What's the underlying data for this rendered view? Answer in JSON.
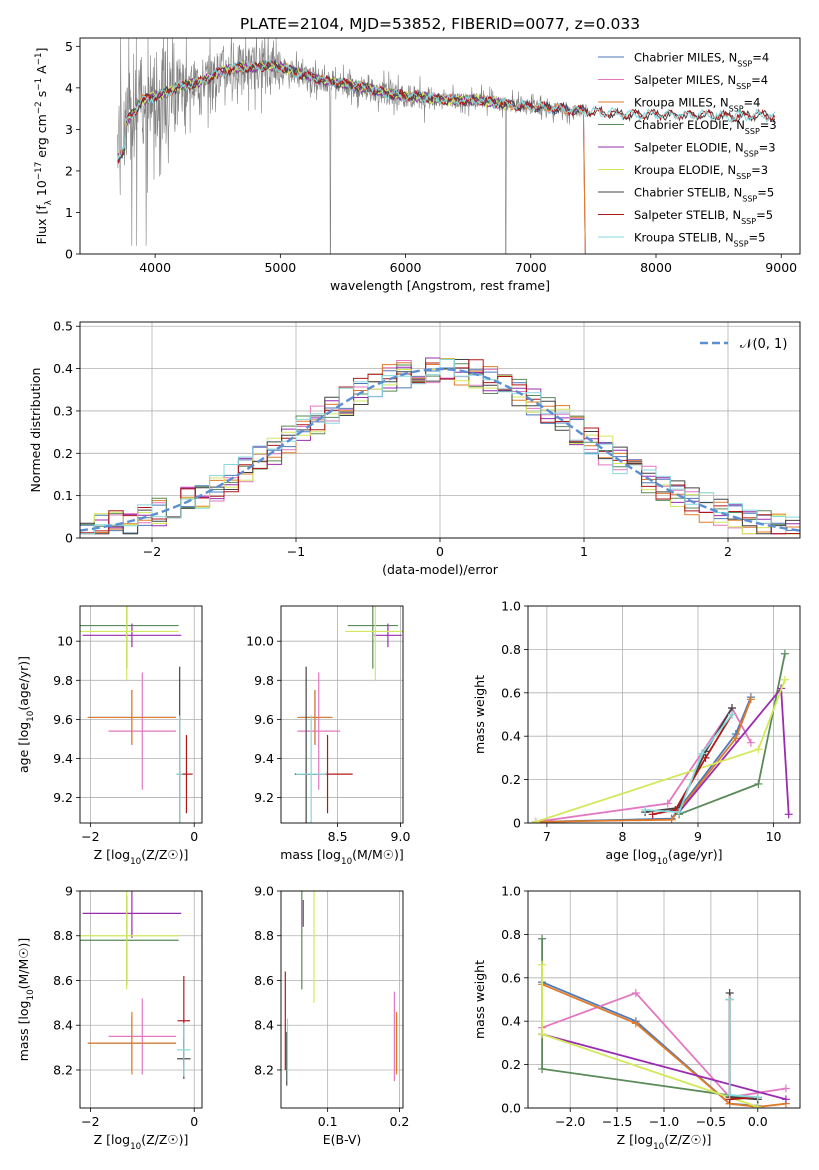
{
  "figure_title": "PLATE=2104, MJD=53852, FIBERID=0077, z=0.033",
  "colors": {
    "Chabrier MILES": "#4e79b8",
    "Salpeter MILES": "#e377c2",
    "Kroupa MILES": "#e07b28",
    "Chabrier ELODIE": "#5a8a5a",
    "Salpeter ELODIE": "#9a2cb0",
    "Kroupa ELODIE": "#d4e85c",
    "Chabrier STELIB": "#444444",
    "Salpeter STELIB": "#b01818",
    "Kroupa STELIB": "#86d8dc",
    "data": "#808080",
    "gaussian": "#5b8fd4",
    "grid": "#b0b0b0"
  },
  "chart_data": [
    {
      "id": "spectrum",
      "type": "line",
      "title": "PLATE=2104, MJD=53852, FIBERID=0077, z=0.033",
      "xlabel": "wavelength [Angstrom, rest frame]",
      "ylabel": "Flux [f_λ 10^-17 erg cm^-2 s^-1 A^-1]",
      "xlim": [
        3400,
        9150
      ],
      "ylim": [
        0,
        5.2
      ],
      "xticks": [
        4000,
        5000,
        6000,
        7000,
        8000,
        9000
      ],
      "yticks": [
        0,
        1,
        2,
        3,
        4,
        5
      ],
      "grid": false,
      "legend_position": "top-right",
      "legend": [
        {
          "name": "Chabrier MILES",
          "nssp": "4"
        },
        {
          "name": "Salpeter MILES",
          "nssp": "4"
        },
        {
          "name": "Kroupa MILES",
          "nssp": "4"
        },
        {
          "name": "Chabrier ELODIE",
          "nssp": "3"
        },
        {
          "name": "Salpeter ELODIE",
          "nssp": "3"
        },
        {
          "name": "Kroupa ELODIE",
          "nssp": "3"
        },
        {
          "name": "Chabrier STELIB",
          "nssp": "5"
        },
        {
          "name": "Salpeter STELIB",
          "nssp": "5"
        },
        {
          "name": "Kroupa STELIB",
          "nssp": "5"
        }
      ],
      "continuum_x": [
        3700,
        3800,
        3900,
        4000,
        4100,
        4200,
        4300,
        4400,
        4500,
        4600,
        4700,
        4800,
        4900,
        5000,
        5200,
        5400,
        5600,
        5800,
        6000,
        6200,
        6400,
        6600,
        6800,
        7000,
        7200,
        7400,
        7600,
        7800,
        8000,
        8200,
        8400,
        8600,
        8800,
        9000
      ],
      "continuum_y": [
        2.9,
        3.3,
        3.7,
        3.8,
        3.9,
        4.05,
        4.1,
        4.2,
        4.35,
        4.45,
        4.5,
        4.5,
        4.55,
        4.5,
        4.3,
        4.15,
        4.05,
        3.9,
        3.8,
        3.75,
        3.7,
        3.7,
        3.6,
        3.55,
        3.5,
        3.45,
        3.4,
        3.35,
        3.35,
        3.35,
        3.35,
        3.3,
        3.35,
        3.3
      ],
      "miles_model_xmax": 7420,
      "elodie_model_xmax": 6800,
      "stelib_model_xmax": 8950,
      "data_xmax": 7450
    },
    {
      "id": "residuals",
      "type": "histogram",
      "xlabel": "(data-model)/error",
      "ylabel": "Normed distribution",
      "xlim": [
        -2.5,
        2.5
      ],
      "ylim": [
        0,
        0.51
      ],
      "xticks": [
        -2,
        -1,
        0,
        1,
        2
      ],
      "yticks": [
        0.0,
        0.1,
        0.2,
        0.3,
        0.4,
        0.5
      ],
      "grid": true,
      "legend_position": "top-right",
      "gaussian_label": "𝒩(0, 1)",
      "bins": 50
    },
    {
      "id": "age_vs_Z",
      "type": "errorbar",
      "xlabel": "Z [log10(Z/Z☉)]",
      "ylabel": "age [log10(age/yr)]",
      "xlim": [
        -2.2,
        0.15
      ],
      "ylim": [
        9.07,
        10.18
      ],
      "xticks": [
        -2,
        0
      ],
      "yticks": [
        9.2,
        9.4,
        9.6,
        9.8,
        10.0
      ],
      "grid": true,
      "points": [
        {
          "series": "Chabrier MILES",
          "x": -1.2,
          "xerr": 0.85,
          "y": 9.61,
          "yerr": 0.14
        },
        {
          "series": "Salpeter MILES",
          "x": -1.0,
          "xerr": 0.65,
          "y": 9.54,
          "yerr": 0.3
        },
        {
          "series": "Kroupa MILES",
          "x": -1.2,
          "xerr": 0.85,
          "y": 9.61,
          "yerr": 0.14
        },
        {
          "series": "Chabrier ELODIE",
          "x": -1.3,
          "xerr": 1.0,
          "y": 10.08,
          "yerr": 0.22
        },
        {
          "series": "Salpeter ELODIE",
          "x": -1.2,
          "xerr": 0.95,
          "y": 10.03,
          "yerr": 0.06
        },
        {
          "series": "Kroupa ELODIE",
          "x": -1.3,
          "xerr": 1.0,
          "y": 10.05,
          "yerr": 0.25
        },
        {
          "series": "Chabrier STELIB",
          "x": -0.28,
          "xerr": 0.06,
          "y": 9.32,
          "yerr": 0.55
        },
        {
          "series": "Salpeter STELIB",
          "x": -0.15,
          "xerr": 0.12,
          "y": 9.32,
          "yerr": 0.2
        },
        {
          "series": "Kroupa STELIB",
          "x": -0.28,
          "xerr": 0.06,
          "y": 9.32,
          "yerr": 0.3
        }
      ]
    },
    {
      "id": "age_vs_mass",
      "type": "errorbar",
      "xlabel": "mass [log10(M/M☉)]",
      "ylabel": "",
      "xlim": [
        8.05,
        9.02
      ],
      "ylim": [
        9.07,
        10.18
      ],
      "xticks": [
        8.5,
        9.0
      ],
      "yticks": [
        9.2,
        9.4,
        9.6,
        9.8,
        10.0
      ],
      "grid": true,
      "points": [
        {
          "series": "Chabrier MILES",
          "x": 8.32,
          "xerr": 0.12,
          "y": 9.61,
          "yerr": 0.14
        },
        {
          "series": "Salpeter MILES",
          "x": 8.35,
          "xerr": 0.17,
          "y": 9.54,
          "yerr": 0.3
        },
        {
          "series": "Kroupa MILES",
          "x": 8.32,
          "xerr": 0.14,
          "y": 9.61,
          "yerr": 0.14
        },
        {
          "series": "Chabrier ELODIE",
          "x": 8.78,
          "xerr": 0.2,
          "y": 10.08,
          "yerr": 0.22
        },
        {
          "series": "Salpeter ELODIE",
          "x": 8.9,
          "xerr": 0.11,
          "y": 10.03,
          "yerr": 0.06
        },
        {
          "series": "Kroupa ELODIE",
          "x": 8.8,
          "xerr": 0.24,
          "y": 10.05,
          "yerr": 0.25
        },
        {
          "series": "Chabrier STELIB",
          "x": 8.25,
          "xerr": 0.09,
          "y": 9.32,
          "yerr": 0.55
        },
        {
          "series": "Salpeter STELIB",
          "x": 8.42,
          "xerr": 0.2,
          "y": 9.32,
          "yerr": 0.2
        },
        {
          "series": "Kroupa STELIB",
          "x": 8.29,
          "xerr": 0.12,
          "y": 9.32,
          "yerr": 0.3
        }
      ]
    },
    {
      "id": "weight_vs_age",
      "type": "line",
      "xlabel": "age [log10(age/yr)]",
      "ylabel": "mass weight",
      "xlim": [
        6.75,
        10.35
      ],
      "ylim": [
        0,
        1.0
      ],
      "xticks": [
        7,
        8,
        9,
        10
      ],
      "yticks": [
        0.0,
        0.2,
        0.4,
        0.6,
        0.8,
        1.0
      ],
      "grid": true,
      "series": [
        {
          "name": "Chabrier MILES",
          "x": [
            6.85,
            8.65,
            9.5,
            9.7
          ],
          "y": [
            0.005,
            0.02,
            0.41,
            0.58
          ]
        },
        {
          "name": "Salpeter MILES",
          "x": [
            6.85,
            8.6,
            9.45,
            9.7
          ],
          "y": [
            0.005,
            0.09,
            0.53,
            0.37
          ]
        },
        {
          "name": "Kroupa MILES",
          "x": [
            6.85,
            8.65,
            9.5,
            9.7
          ],
          "y": [
            0.005,
            0.015,
            0.39,
            0.57
          ]
        },
        {
          "name": "Chabrier ELODIE",
          "x": [
            8.75,
            9.8,
            10.15
          ],
          "y": [
            0.04,
            0.18,
            0.78
          ]
        },
        {
          "name": "Salpeter ELODIE",
          "x": [
            8.75,
            10.1,
            10.2
          ],
          "y": [
            0.05,
            0.62,
            0.04
          ]
        },
        {
          "name": "Kroupa ELODIE",
          "x": [
            6.85,
            9.8,
            10.15
          ],
          "y": [
            0.005,
            0.34,
            0.66
          ]
        },
        {
          "name": "Chabrier STELIB",
          "x": [
            8.3,
            8.75,
            9.1,
            9.45
          ],
          "y": [
            0.05,
            0.07,
            0.33,
            0.53
          ]
        },
        {
          "name": "Salpeter STELIB",
          "x": [
            8.4,
            8.7,
            9.1,
            9.45
          ],
          "y": [
            0.04,
            0.06,
            0.3,
            0.5
          ]
        },
        {
          "name": "Kroupa STELIB",
          "x": [
            8.3,
            8.75,
            9.05,
            9.45
          ],
          "y": [
            0.06,
            0.05,
            0.32,
            0.5
          ]
        }
      ]
    },
    {
      "id": "mass_vs_Z",
      "type": "errorbar",
      "xlabel": "Z [log10(Z/Z☉)]",
      "ylabel": "mass [log10(M/M☉)]",
      "xlim": [
        -2.2,
        0.15
      ],
      "ylim": [
        8.03,
        9.0
      ],
      "xticks": [
        -2,
        0
      ],
      "yticks": [
        8.2,
        8.4,
        8.6,
        8.8,
        9.0
      ],
      "grid": true,
      "points": [
        {
          "series": "Chabrier MILES",
          "x": -1.2,
          "xerr": 0.85,
          "y": 8.32,
          "yerr": 0.12
        },
        {
          "series": "Salpeter MILES",
          "x": -1.0,
          "xerr": 0.65,
          "y": 8.35,
          "yerr": 0.17
        },
        {
          "series": "Kroupa MILES",
          "x": -1.2,
          "xerr": 0.85,
          "y": 8.32,
          "yerr": 0.14
        },
        {
          "series": "Chabrier ELODIE",
          "x": -1.3,
          "xerr": 1.0,
          "y": 8.78,
          "yerr": 0.2
        },
        {
          "series": "Salpeter ELODIE",
          "x": -1.2,
          "xerr": 0.95,
          "y": 8.9,
          "yerr": 0.11
        },
        {
          "series": "Kroupa ELODIE",
          "x": -1.3,
          "xerr": 1.0,
          "y": 8.8,
          "yerr": 0.24
        },
        {
          "series": "Chabrier STELIB",
          "x": -0.2,
          "xerr": 0.13,
          "y": 8.25,
          "yerr": 0.09
        },
        {
          "series": "Salpeter STELIB",
          "x": -0.2,
          "xerr": 0.12,
          "y": 8.42,
          "yerr": 0.2
        },
        {
          "series": "Kroupa STELIB",
          "x": -0.2,
          "xerr": 0.13,
          "y": 8.29,
          "yerr": 0.12
        }
      ]
    },
    {
      "id": "mass_vs_ebv",
      "type": "errorbar",
      "xlabel": "E(B-V)",
      "ylabel": "",
      "xlim": [
        0.035,
        0.205
      ],
      "ylim": [
        8.03,
        9.0
      ],
      "xticks": [
        0.1,
        0.2
      ],
      "yticks": [
        8.2,
        8.4,
        8.6,
        8.8,
        9.0
      ],
      "grid": true,
      "points": [
        {
          "series": "Chabrier MILES",
          "x": 0.196,
          "xerr": 0.0,
          "y": 8.32,
          "yerr": 0.12
        },
        {
          "series": "Salpeter MILES",
          "x": 0.193,
          "xerr": 0.0,
          "y": 8.35,
          "yerr": 0.2
        },
        {
          "series": "Kroupa MILES",
          "x": 0.196,
          "xerr": 0.0,
          "y": 8.32,
          "yerr": 0.14
        },
        {
          "series": "Chabrier ELODIE",
          "x": 0.064,
          "xerr": 0.0,
          "y": 8.78,
          "yerr": 0.22
        },
        {
          "series": "Salpeter ELODIE",
          "x": 0.066,
          "xerr": 0.0,
          "y": 8.9,
          "yerr": 0.06
        },
        {
          "series": "Kroupa ELODIE",
          "x": 0.081,
          "xerr": 0.0,
          "y": 8.8,
          "yerr": 0.3
        },
        {
          "series": "Chabrier STELIB",
          "x": 0.043,
          "xerr": 0.0,
          "y": 8.25,
          "yerr": 0.12
        },
        {
          "series": "Salpeter STELIB",
          "x": 0.041,
          "xerr": 0.0,
          "y": 8.42,
          "yerr": 0.22
        },
        {
          "series": "Kroupa STELIB",
          "x": 0.044,
          "xerr": 0.0,
          "y": 8.29,
          "yerr": 0.14
        }
      ]
    },
    {
      "id": "weight_vs_Z",
      "type": "line",
      "xlabel": "Z [log10(Z/Z☉)]",
      "ylabel": "mass weight",
      "xlim": [
        -2.45,
        0.45
      ],
      "ylim": [
        0,
        1.0
      ],
      "xticks": [
        -2.0,
        -1.5,
        -1.0,
        -0.5,
        0.0
      ],
      "yticks": [
        0.0,
        0.2,
        0.4,
        0.6,
        0.8,
        1.0
      ],
      "grid": true,
      "series": [
        {
          "name": "Chabrier MILES",
          "x": [
            -2.3,
            -1.3,
            -0.3,
            0.0
          ],
          "y": [
            0.58,
            0.4,
            0.02,
            0.01
          ]
        },
        {
          "name": "Salpeter MILES",
          "x": [
            -2.3,
            -1.3,
            -0.3,
            0.3
          ],
          "y": [
            0.37,
            0.53,
            0.05,
            0.09
          ]
        },
        {
          "name": "Kroupa MILES",
          "x": [
            -2.3,
            -1.3,
            -0.3,
            0.0,
            0.3
          ],
          "y": [
            0.57,
            0.39,
            0.02,
            0.005,
            0.02
          ]
        },
        {
          "name": "Chabrier ELODIE",
          "x": [
            -2.3,
            -2.3,
            0.0
          ],
          "y": [
            0.78,
            0.18,
            0.04
          ]
        },
        {
          "name": "Salpeter ELODIE",
          "x": [
            -2.3,
            0.3
          ],
          "y": [
            0.34,
            0.04
          ]
        },
        {
          "name": "Kroupa ELODIE",
          "x": [
            -2.3,
            -2.3,
            0.0
          ],
          "y": [
            0.66,
            0.34,
            0.005
          ]
        },
        {
          "name": "Chabrier STELIB",
          "x": [
            -0.3,
            -0.3,
            0.0
          ],
          "y": [
            0.53,
            0.05,
            0.04
          ]
        },
        {
          "name": "Salpeter STELIB",
          "x": [
            -0.3,
            -0.3,
            0.0
          ],
          "y": [
            0.5,
            0.04,
            0.05
          ]
        },
        {
          "name": "Kroupa STELIB",
          "x": [
            -0.3,
            -0.3,
            0.0
          ],
          "y": [
            0.5,
            0.06,
            0.05
          ]
        }
      ]
    }
  ]
}
